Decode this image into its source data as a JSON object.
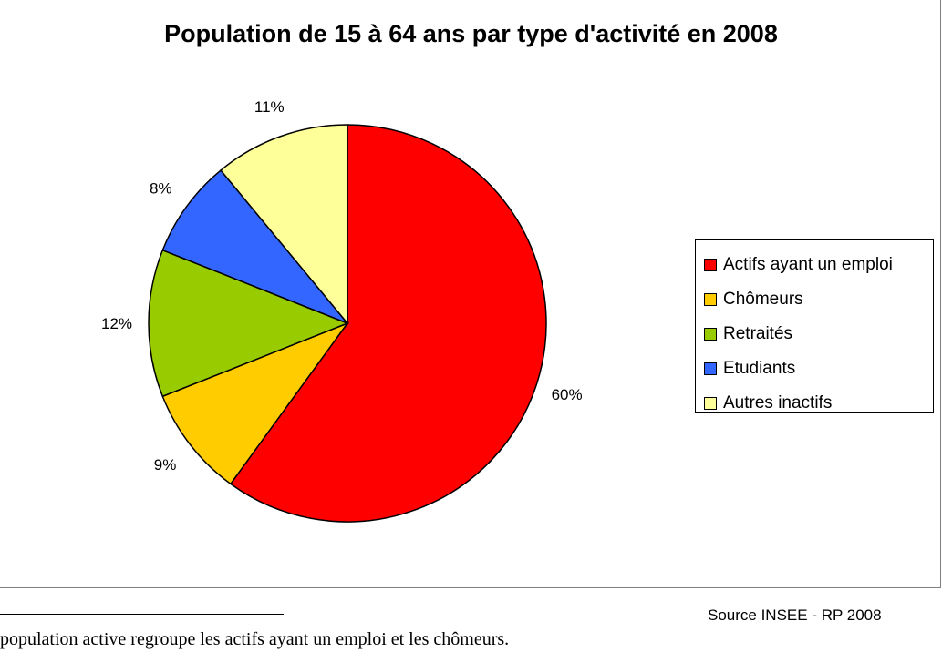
{
  "chart_data": {
    "type": "pie",
    "title": "Population de 15 à 64 ans par type d'activité en 2008",
    "slices": [
      {
        "name": "Actifs ayant un emploi",
        "value": 60,
        "label": "60%",
        "color": "#ff0000"
      },
      {
        "name": "Chômeurs",
        "value": 9,
        "label": "9%",
        "color": "#ffcc00"
      },
      {
        "name": "Retraités",
        "value": 12,
        "label": "12%",
        "color": "#99cc00"
      },
      {
        "name": "Etudiants",
        "value": 8,
        "label": "8%",
        "color": "#3366ff"
      },
      {
        "name": "Autres inactifs",
        "value": 11,
        "label": "11%",
        "color": "#ffff99"
      }
    ],
    "legend_position": "right"
  },
  "source": "Source INSEE - RP 2008",
  "footnote": "population active regroupe les actifs ayant un emploi et les chômeurs."
}
